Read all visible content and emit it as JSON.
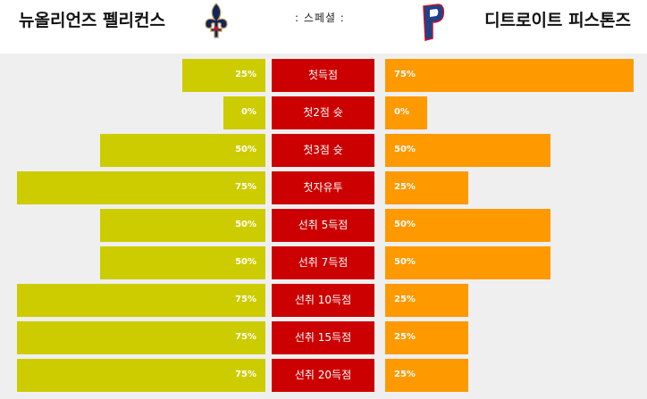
{
  "header": {
    "left_team": "뉴올리언즈 펠리컨스",
    "title": ": 스페셜 :",
    "right_team": "디트로이트 피스톤즈",
    "left_logo_icon": "fleur-de-lis-logo-icon",
    "right_logo_icon": "pistons-p-logo-icon"
  },
  "colors": {
    "left_bar": "#cccc00",
    "right_bar": "#ff9900",
    "label_bg": "#cc0000"
  },
  "rows": [
    {
      "label": "첫득점",
      "left_pct": "25%",
      "right_pct": "75%",
      "left_value": 25,
      "right_value": 75
    },
    {
      "label": "첫2점 슛",
      "left_pct": "0%",
      "right_pct": "0%",
      "left_value": 0,
      "right_value": 0
    },
    {
      "label": "첫3점 슛",
      "left_pct": "50%",
      "right_pct": "50%",
      "left_value": 50,
      "right_value": 50
    },
    {
      "label": "첫자유투",
      "left_pct": "75%",
      "right_pct": "25%",
      "left_value": 75,
      "right_value": 25
    },
    {
      "label": "선취 5득점",
      "left_pct": "50%",
      "right_pct": "50%",
      "left_value": 50,
      "right_value": 50
    },
    {
      "label": "선취 7득점",
      "left_pct": "50%",
      "right_pct": "50%",
      "left_value": 50,
      "right_value": 50
    },
    {
      "label": "선취 10득점",
      "left_pct": "75%",
      "right_pct": "25%",
      "left_value": 75,
      "right_value": 25
    },
    {
      "label": "선취 15득점",
      "left_pct": "75%",
      "right_pct": "25%",
      "left_value": 75,
      "right_value": 25
    },
    {
      "label": "선취 20득점",
      "left_pct": "75%",
      "right_pct": "25%",
      "left_value": 75,
      "right_value": 25
    }
  ]
}
